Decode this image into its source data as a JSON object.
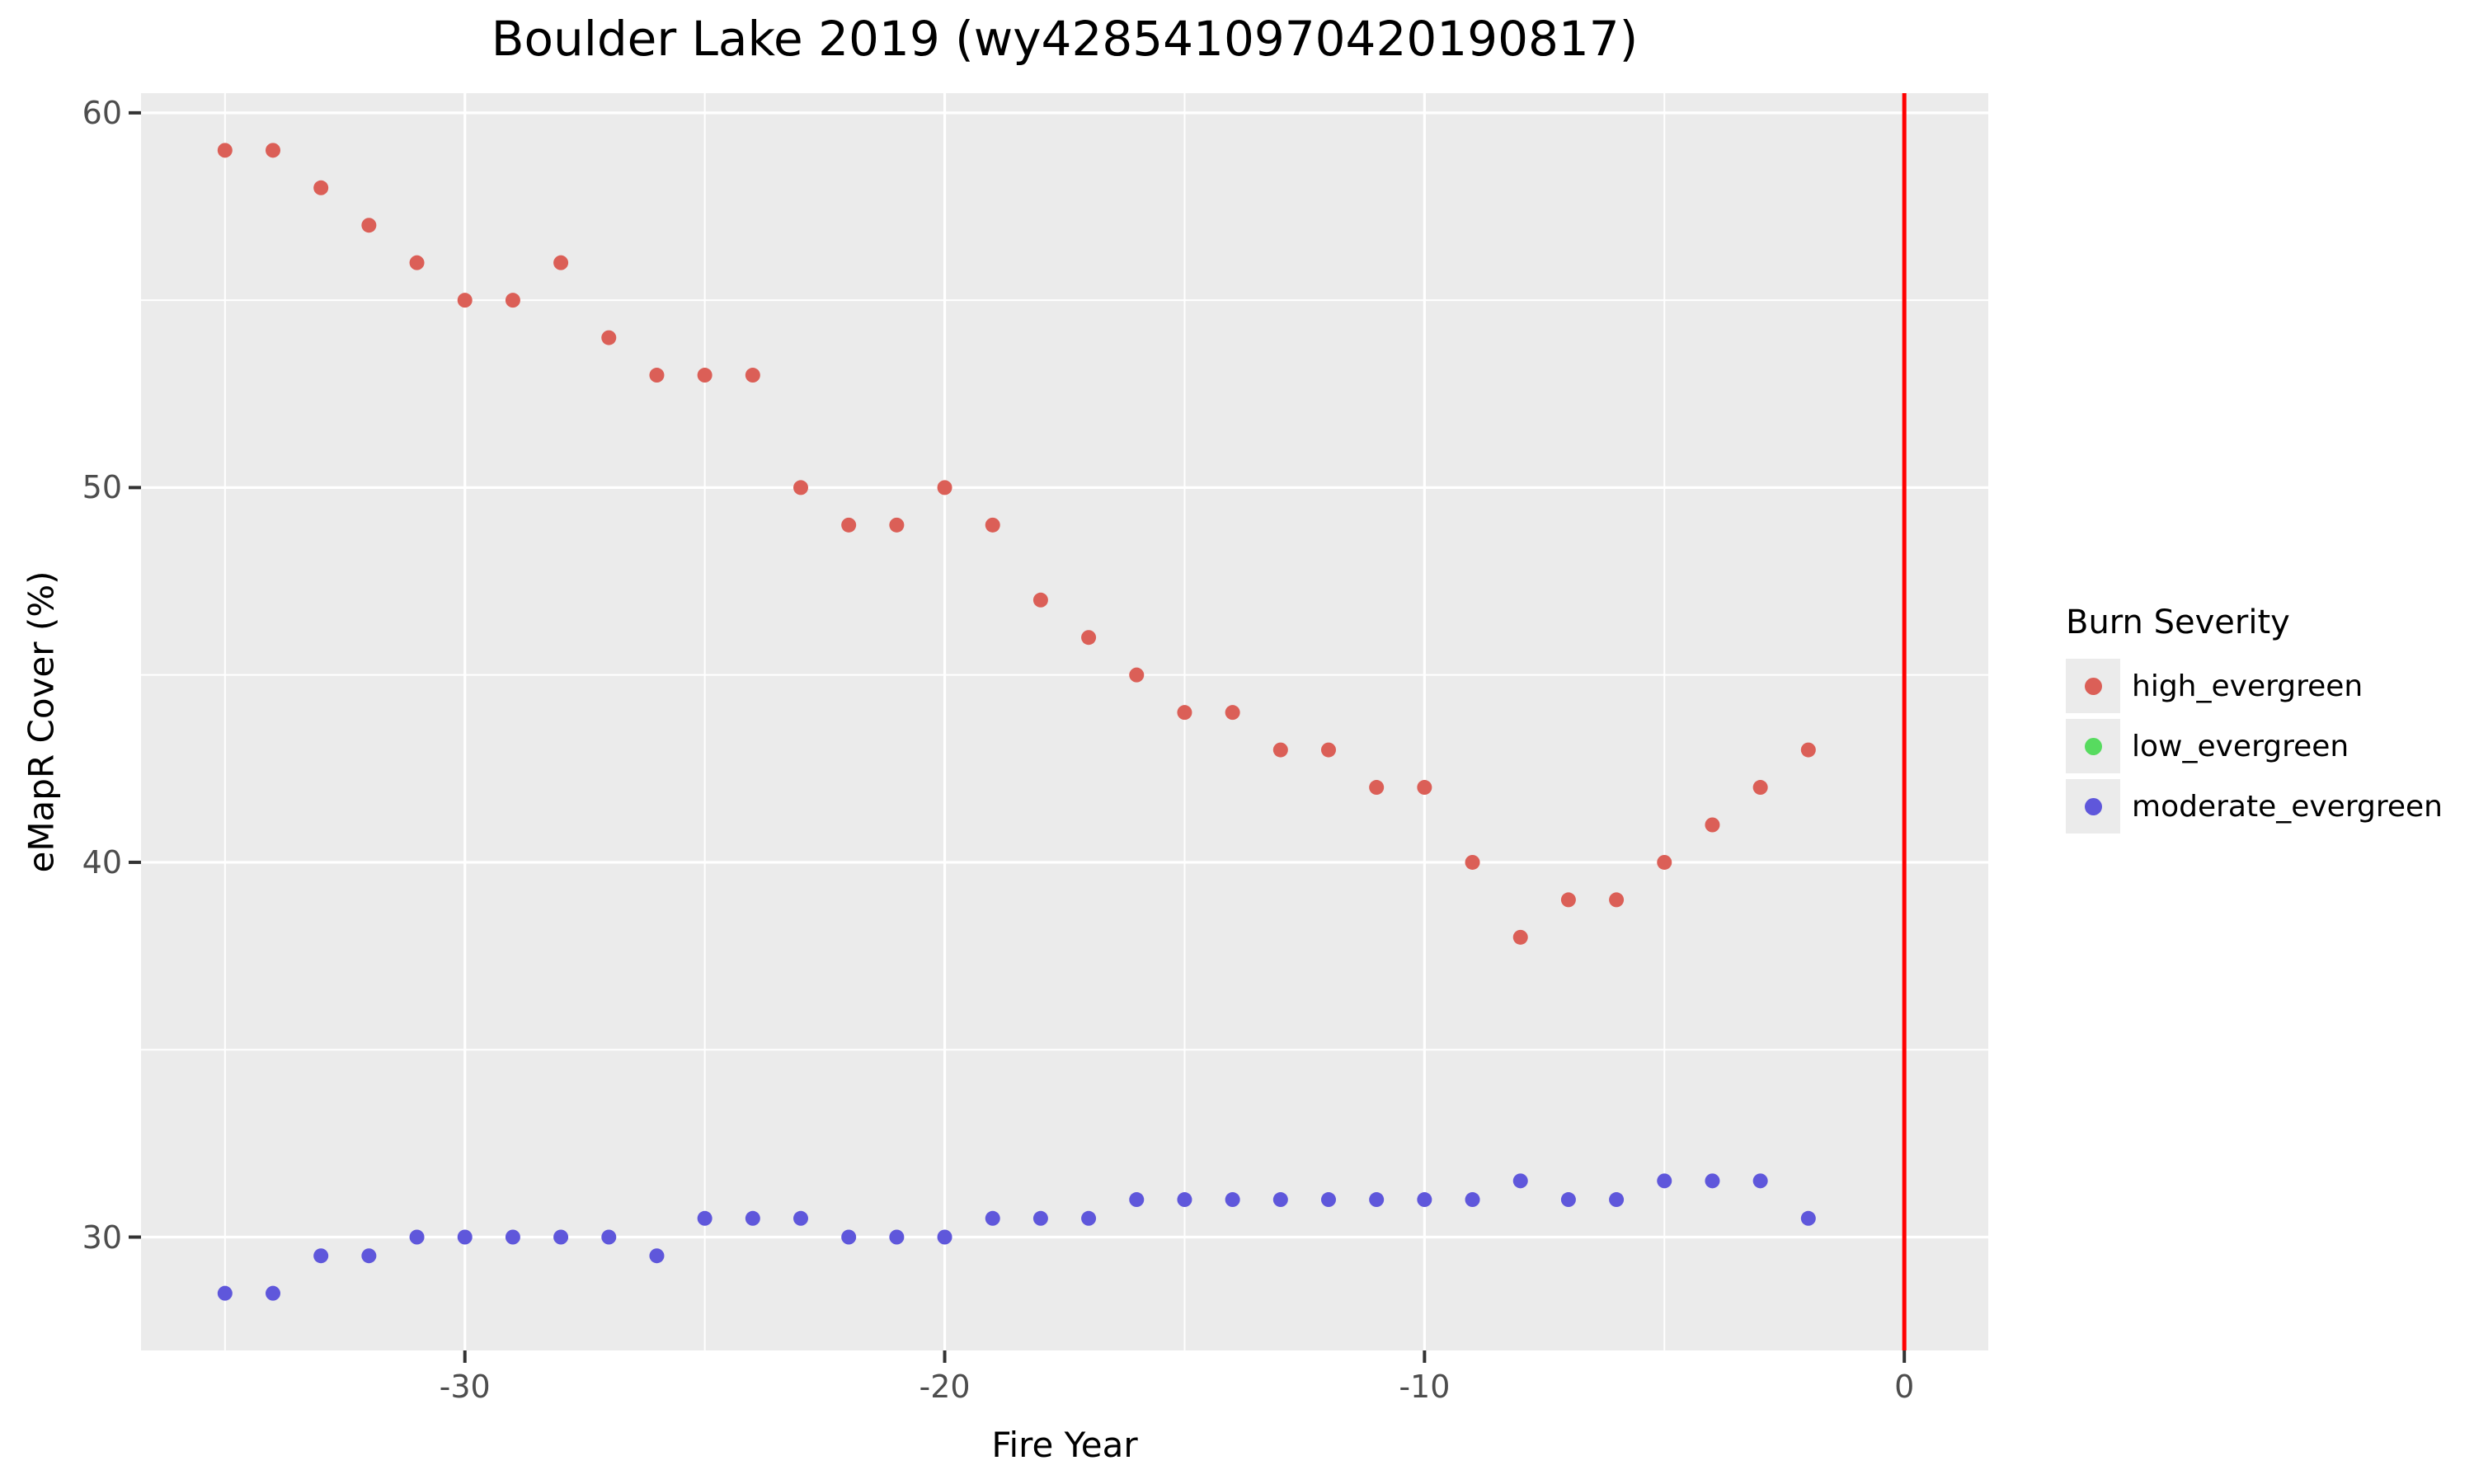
{
  "page": {
    "title": "Boulder Lake 2019 (wy4285410970420190817)"
  },
  "axes": {
    "x": {
      "label": "Fire Year",
      "major_ticks": [
        -30,
        -20,
        -10,
        0
      ],
      "tick_labels": [
        "-30",
        "-20",
        "-10",
        "0"
      ],
      "minor_ticks": [
        -35,
        -25,
        -15,
        -5
      ]
    },
    "y": {
      "label": "eMapR Cover (%)",
      "major_ticks": [
        60,
        50,
        40,
        30
      ],
      "tick_labels": [
        "60",
        "50",
        "40",
        "30"
      ],
      "minor_ticks": [
        55,
        45,
        35
      ]
    }
  },
  "legend": {
    "title": "Burn Severity",
    "entries": [
      {
        "label": "high_evergreen",
        "color": "#db5f57"
      },
      {
        "label": "low_evergreen",
        "color": "#57db5f"
      },
      {
        "label": "moderate_evergreen",
        "color": "#5f57db"
      }
    ]
  },
  "style_colors": {
    "panel_background": "#ebebeb",
    "gridline": "#ffffff",
    "tick_text": "#4d4d4d",
    "tick_mark": "#333333",
    "vline": "#ff0000",
    "title_text": "#000000"
  },
  "chart_data": {
    "type": "scatter",
    "title": "Boulder Lake 2019 (wy4285410970420190817)",
    "xlabel": "Fire Year",
    "ylabel": "eMapR Cover (%)",
    "xlim": [
      -36.75,
      1.75
    ],
    "ylim": [
      26.975,
      60.525
    ],
    "grid": "on",
    "legend_position": "right",
    "vline": {
      "x": 0,
      "color": "#ff0000"
    },
    "point_radius_px": 9,
    "series": [
      {
        "name": "high_evergreen",
        "color": "#db5f57",
        "x": [
          -35,
          -34,
          -33,
          -32,
          -31,
          -30,
          -29,
          -28,
          -27,
          -26,
          -25,
          -24,
          -23,
          -22,
          -21,
          -20,
          -19,
          -18,
          -17,
          -16,
          -15,
          -14,
          -13,
          -12,
          -11,
          -10,
          -9,
          -8,
          -7,
          -6,
          -5,
          -4,
          -3,
          -2
        ],
        "y": [
          59,
          59,
          58,
          57,
          56,
          55,
          55,
          56,
          54,
          53,
          53,
          53,
          50,
          49,
          49,
          50,
          49,
          47,
          46,
          45,
          44,
          44,
          43,
          43,
          42,
          42,
          40,
          38,
          39,
          39,
          40,
          41,
          42,
          43
        ]
      },
      {
        "name": "low_evergreen",
        "color": "#57db5f",
        "x": [],
        "y": []
      },
      {
        "name": "moderate_evergreen",
        "color": "#5f57db",
        "x": [
          -35,
          -34,
          -33,
          -32,
          -31,
          -30,
          -29,
          -28,
          -27,
          -26,
          -25,
          -24,
          -23,
          -22,
          -21,
          -20,
          -19,
          -18,
          -17,
          -16,
          -15,
          -14,
          -13,
          -12,
          -11,
          -10,
          -9,
          -8,
          -7,
          -6,
          -5,
          -4,
          -3,
          -2
        ],
        "y": [
          28.5,
          28.5,
          29.5,
          29.5,
          30,
          30,
          30,
          30,
          30,
          29.5,
          30.5,
          30.5,
          30.5,
          30,
          30,
          30,
          30.5,
          30.5,
          30.5,
          31,
          31,
          31,
          31,
          31,
          31,
          31,
          31,
          31.5,
          31,
          31,
          31.5,
          31.5,
          31.5,
          30.5
        ]
      }
    ]
  }
}
